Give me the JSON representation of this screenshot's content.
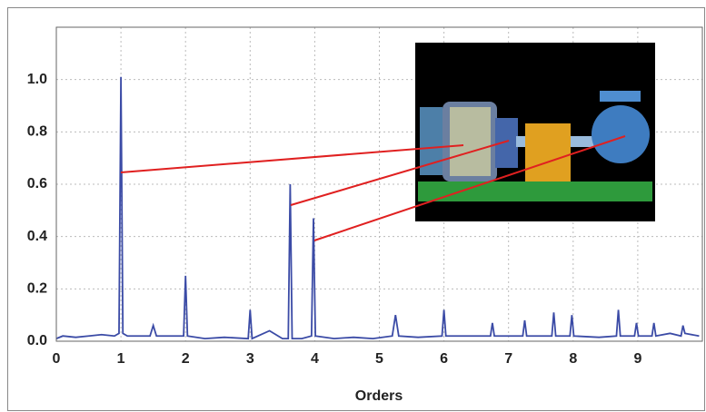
{
  "chart_data": {
    "type": "line",
    "x": [
      0,
      0.1,
      0.3,
      0.5,
      0.7,
      0.9,
      0.97,
      1.0,
      1.03,
      1.1,
      1.3,
      1.45,
      1.5,
      1.55,
      1.8,
      1.97,
      2.0,
      2.03,
      2.3,
      2.6,
      2.97,
      3.0,
      3.03,
      3.3,
      3.5,
      3.59,
      3.62,
      3.65,
      3.8,
      3.95,
      3.98,
      4.01,
      4.3,
      4.6,
      4.9,
      5.2,
      5.25,
      5.3,
      5.6,
      5.97,
      6.0,
      6.03,
      6.4,
      6.72,
      6.75,
      6.78,
      7.1,
      7.22,
      7.25,
      7.28,
      7.67,
      7.7,
      7.73,
      7.95,
      7.98,
      8.01,
      8.4,
      8.67,
      8.7,
      8.73,
      8.95,
      8.98,
      9.01,
      9.22,
      9.25,
      9.28,
      9.5,
      9.67,
      9.7,
      9.73,
      9.95
    ],
    "series": [
      {
        "color": "#3b4ba6",
        "values": [
          0.01,
          0.02,
          0.015,
          0.02,
          0.025,
          0.02,
          0.03,
          1.01,
          0.03,
          0.02,
          0.02,
          0.02,
          0.06,
          0.02,
          0.02,
          0.02,
          0.25,
          0.02,
          0.01,
          0.015,
          0.01,
          0.12,
          0.01,
          0.04,
          0.01,
          0.01,
          0.6,
          0.01,
          0.01,
          0.02,
          0.47,
          0.02,
          0.01,
          0.015,
          0.01,
          0.02,
          0.1,
          0.02,
          0.015,
          0.02,
          0.12,
          0.02,
          0.02,
          0.02,
          0.07,
          0.02,
          0.02,
          0.02,
          0.08,
          0.02,
          0.02,
          0.11,
          0.02,
          0.02,
          0.1,
          0.02,
          0.015,
          0.02,
          0.12,
          0.02,
          0.02,
          0.07,
          0.02,
          0.02,
          0.07,
          0.02,
          0.03,
          0.02,
          0.06,
          0.03,
          0.02
        ]
      }
    ],
    "xlim": [
      0,
      10
    ],
    "xticks": [
      0,
      1,
      2,
      3,
      4,
      5,
      6,
      7,
      8,
      9
    ],
    "ylim": [
      0,
      1.2
    ],
    "yticks": [
      {
        "value": 0,
        "label": "0.0"
      },
      0.2,
      0.4,
      0.6,
      0.8,
      {
        "value": 1,
        "label": "1.0"
      }
    ],
    "xlabel": "Orders",
    "grid": true
  }
}
